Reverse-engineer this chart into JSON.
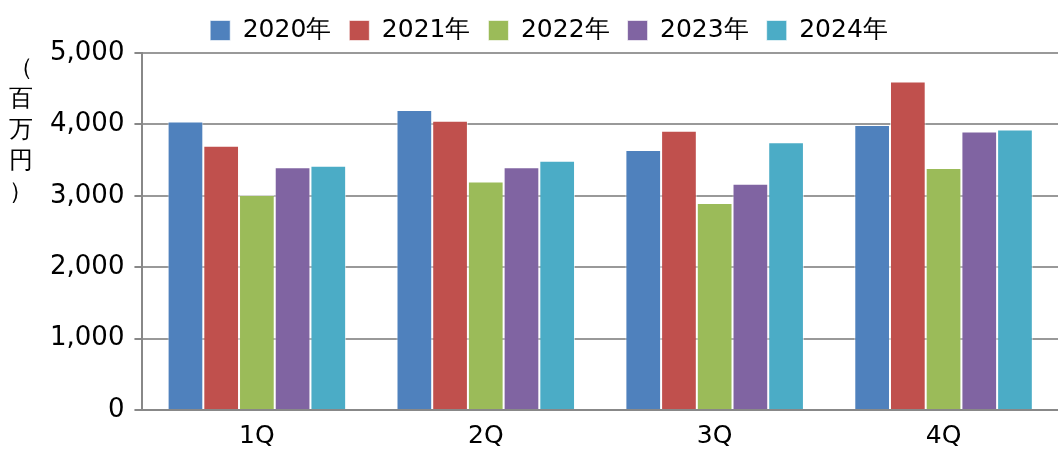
{
  "chart_data": {
    "type": "bar",
    "ylabel": "（百万円）",
    "categories": [
      "1Q",
      "2Q",
      "3Q",
      "4Q"
    ],
    "series": [
      {
        "name": "2020年",
        "color": "#4f81bd",
        "values": [
          4040,
          4200,
          3640,
          3990
        ]
      },
      {
        "name": "2021年",
        "color": "#c0504d",
        "values": [
          3700,
          4050,
          3910,
          4600
        ]
      },
      {
        "name": "2022年",
        "color": "#9bbb59",
        "values": [
          3010,
          3200,
          2900,
          3390
        ]
      },
      {
        "name": "2023年",
        "color": "#8064a2",
        "values": [
          3400,
          3400,
          3170,
          3900
        ]
      },
      {
        "name": "2024年",
        "color": "#4bacc6",
        "values": [
          3420,
          3490,
          3750,
          3930
        ]
      }
    ],
    "ylim": [
      0,
      5000
    ],
    "yticks": [
      0,
      {
        "value": 1000,
        "label": "1,000"
      },
      {
        "value": 2000,
        "label": "2,000"
      },
      {
        "value": 3000,
        "label": "3,000"
      },
      {
        "value": 4000,
        "label": "4,000"
      },
      {
        "value": 5000,
        "label": "5,000"
      }
    ],
    "grid": "y",
    "legend": "top"
  }
}
